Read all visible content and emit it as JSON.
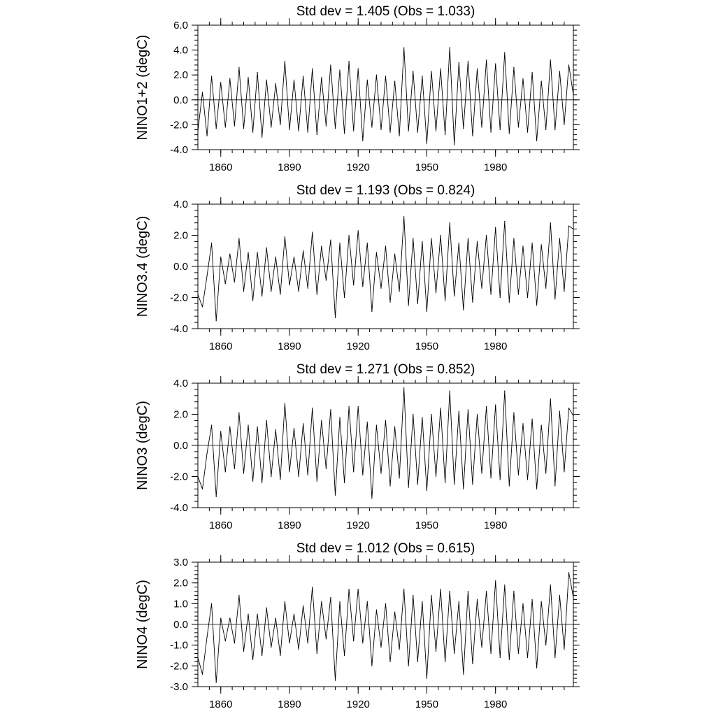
{
  "chart_data": [
    {
      "type": "line",
      "title": "Std dev = 1.405 (Obs = 1.033)",
      "xlabel": "",
      "ylabel": "NINO1+2 (degC)",
      "xlim": [
        1850,
        2014
      ],
      "ylim": [
        -4.0,
        6.0
      ],
      "yticks": [
        -4.0,
        -2.0,
        0.0,
        2.0,
        4.0,
        6.0
      ],
      "ytick_labels": [
        "-4.0",
        "-2.0",
        "0.0",
        "2.0",
        "4.0",
        "6.0"
      ],
      "xticks": [
        1860,
        1890,
        1920,
        1950,
        1980
      ],
      "xtick_labels": [
        "1860",
        "1890",
        "1920",
        "1950",
        "1980"
      ],
      "zero_line": true,
      "series": [
        {
          "name": "NINO1+2",
          "x": [
            1850,
            1852,
            1854,
            1856,
            1858,
            1860,
            1862,
            1864,
            1866,
            1868,
            1870,
            1872,
            1874,
            1876,
            1878,
            1880,
            1882,
            1884,
            1886,
            1888,
            1890,
            1892,
            1894,
            1896,
            1898,
            1900,
            1902,
            1904,
            1906,
            1908,
            1910,
            1912,
            1914,
            1916,
            1918,
            1920,
            1922,
            1924,
            1926,
            1928,
            1930,
            1932,
            1934,
            1936,
            1938,
            1940,
            1942,
            1944,
            1946,
            1948,
            1950,
            1952,
            1954,
            1956,
            1958,
            1960,
            1962,
            1964,
            1966,
            1968,
            1970,
            1972,
            1974,
            1976,
            1978,
            1980,
            1982,
            1984,
            1986,
            1988,
            1990,
            1992,
            1994,
            1996,
            1998,
            2000,
            2002,
            2004,
            2006,
            2008,
            2010,
            2012,
            2014
          ],
          "values": [
            -2.5,
            0.6,
            -2.9,
            1.9,
            -2.3,
            1.4,
            -2.2,
            1.7,
            -2.1,
            2.6,
            -2.3,
            1.8,
            -2.6,
            2.2,
            -3.0,
            1.6,
            -2.2,
            1.3,
            -2.0,
            3.1,
            -2.4,
            1.6,
            -2.5,
            1.9,
            -2.6,
            2.5,
            -2.8,
            1.8,
            -2.1,
            2.8,
            -2.3,
            2.4,
            -2.7,
            3.1,
            -2.5,
            2.5,
            -3.3,
            1.6,
            -2.2,
            2.0,
            -2.4,
            1.9,
            -2.6,
            1.5,
            -2.9,
            4.2,
            -2.5,
            2.3,
            -2.6,
            1.9,
            -3.5,
            2.3,
            -2.5,
            2.5,
            -2.8,
            4.2,
            -3.6,
            3.0,
            -2.3,
            3.1,
            -2.9,
            2.5,
            -2.2,
            3.2,
            -2.6,
            2.9,
            -2.4,
            3.8,
            -2.7,
            2.6,
            -2.2,
            1.7,
            -2.6,
            2.2,
            -3.3,
            1.5,
            -2.4,
            3.2,
            -2.4,
            2.3,
            -2.0,
            2.8,
            0.4
          ]
        }
      ]
    },
    {
      "type": "line",
      "title": "Std dev = 1.193 (Obs = 0.824)",
      "xlabel": "",
      "ylabel": "NINO3.4 (degC)",
      "xlim": [
        1850,
        2014
      ],
      "ylim": [
        -4.0,
        4.0
      ],
      "yticks": [
        -4.0,
        -2.0,
        0.0,
        2.0,
        4.0
      ],
      "ytick_labels": [
        "-4.0",
        "-2.0",
        "0.0",
        "2.0",
        "4.0"
      ],
      "xticks": [
        1860,
        1890,
        1920,
        1950,
        1980
      ],
      "xtick_labels": [
        "1860",
        "1890",
        "1920",
        "1950",
        "1980"
      ],
      "zero_line": true,
      "series": [
        {
          "name": "NINO3.4",
          "x": [
            1850,
            1852,
            1854,
            1856,
            1858,
            1860,
            1862,
            1864,
            1866,
            1868,
            1870,
            1872,
            1874,
            1876,
            1878,
            1880,
            1882,
            1884,
            1886,
            1888,
            1890,
            1892,
            1894,
            1896,
            1898,
            1900,
            1902,
            1904,
            1906,
            1908,
            1910,
            1912,
            1914,
            1916,
            1918,
            1920,
            1922,
            1924,
            1926,
            1928,
            1930,
            1932,
            1934,
            1936,
            1938,
            1940,
            1942,
            1944,
            1946,
            1948,
            1950,
            1952,
            1954,
            1956,
            1958,
            1960,
            1962,
            1964,
            1966,
            1968,
            1970,
            1972,
            1974,
            1976,
            1978,
            1980,
            1982,
            1984,
            1986,
            1988,
            1990,
            1992,
            1994,
            1996,
            1998,
            2000,
            2002,
            2004,
            2006,
            2008,
            2010,
            2012,
            2014
          ],
          "values": [
            -1.8,
            -2.6,
            -0.6,
            1.5,
            -3.5,
            0.6,
            -1.1,
            0.8,
            -1.0,
            1.8,
            -1.6,
            0.9,
            -2.2,
            0.9,
            -1.9,
            1.2,
            -1.6,
            0.6,
            -1.8,
            1.9,
            -1.2,
            0.6,
            -1.6,
            1.0,
            -1.4,
            2.2,
            -1.8,
            1.3,
            -0.9,
            1.7,
            -3.3,
            1.5,
            -2.0,
            2.0,
            -1.2,
            2.3,
            -1.3,
            1.5,
            -2.9,
            0.9,
            -1.4,
            1.3,
            -2.3,
            0.8,
            -1.6,
            3.2,
            -2.5,
            1.8,
            -2.4,
            1.6,
            -2.9,
            1.8,
            -1.7,
            2.0,
            -2.2,
            2.8,
            -1.9,
            1.5,
            -2.8,
            1.8,
            -2.3,
            1.6,
            -1.4,
            2.0,
            -1.8,
            2.5,
            -2.0,
            2.9,
            -2.3,
            1.8,
            -1.8,
            1.3,
            -2.0,
            1.5,
            -2.5,
            1.4,
            -1.4,
            2.8,
            -2.1,
            1.8,
            -1.6,
            2.6,
            2.4
          ]
        }
      ]
    },
    {
      "type": "line",
      "title": "Std dev = 1.271 (Obs = 0.852)",
      "xlabel": "",
      "ylabel": "NINO3 (degC)",
      "xlim": [
        1850,
        2014
      ],
      "ylim": [
        -4.0,
        4.0
      ],
      "yticks": [
        -4.0,
        -2.0,
        0.0,
        2.0,
        4.0
      ],
      "ytick_labels": [
        "-4.0",
        "-2.0",
        "0.0",
        "2.0",
        "4.0"
      ],
      "xticks": [
        1860,
        1890,
        1920,
        1950,
        1980
      ],
      "xtick_labels": [
        "1860",
        "1890",
        "1920",
        "1950",
        "1980"
      ],
      "zero_line": true,
      "series": [
        {
          "name": "NINO3",
          "x": [
            1850,
            1852,
            1854,
            1856,
            1858,
            1860,
            1862,
            1864,
            1866,
            1868,
            1870,
            1872,
            1874,
            1876,
            1878,
            1880,
            1882,
            1884,
            1886,
            1888,
            1890,
            1892,
            1894,
            1896,
            1898,
            1900,
            1902,
            1904,
            1906,
            1908,
            1910,
            1912,
            1914,
            1916,
            1918,
            1920,
            1922,
            1924,
            1926,
            1928,
            1930,
            1932,
            1934,
            1936,
            1938,
            1940,
            1942,
            1944,
            1946,
            1948,
            1950,
            1952,
            1954,
            1956,
            1958,
            1960,
            1962,
            1964,
            1966,
            1968,
            1970,
            1972,
            1974,
            1976,
            1978,
            1980,
            1982,
            1984,
            1986,
            1988,
            1990,
            1992,
            1994,
            1996,
            1998,
            2000,
            2002,
            2004,
            2006,
            2008,
            2010,
            2012,
            2014
          ],
          "values": [
            -2.0,
            -2.8,
            -0.5,
            1.3,
            -3.3,
            0.9,
            -1.7,
            1.2,
            -1.5,
            2.1,
            -1.8,
            1.3,
            -2.3,
            1.2,
            -2.4,
            1.6,
            -2.0,
            1.0,
            -2.2,
            2.7,
            -1.7,
            1.1,
            -2.0,
            1.4,
            -1.9,
            2.4,
            -2.3,
            1.6,
            -1.5,
            2.3,
            -3.2,
            1.8,
            -2.4,
            2.5,
            -1.7,
            2.5,
            -1.9,
            1.5,
            -3.4,
            1.3,
            -1.8,
            1.6,
            -2.6,
            1.2,
            -2.1,
            3.7,
            -2.7,
            2.0,
            -2.5,
            1.8,
            -2.9,
            2.0,
            -2.0,
            2.4,
            -2.4,
            3.5,
            -2.5,
            2.2,
            -2.8,
            2.3,
            -2.5,
            2.0,
            -1.8,
            2.5,
            -2.1,
            2.6,
            -2.2,
            3.5,
            -2.6,
            2.1,
            -1.9,
            1.4,
            -2.2,
            1.7,
            -2.8,
            1.3,
            -1.8,
            3.0,
            -2.6,
            2.2,
            -1.7,
            2.4,
            1.9
          ]
        }
      ]
    },
    {
      "type": "line",
      "title": "Std dev = 1.012 (Obs = 0.615)",
      "xlabel": "",
      "ylabel": "NINO4 (degC)",
      "xlim": [
        1850,
        2014
      ],
      "ylim": [
        -3.0,
        3.0
      ],
      "yticks": [
        -3.0,
        -2.0,
        -1.0,
        0.0,
        1.0,
        2.0,
        3.0
      ],
      "ytick_labels": [
        "-3.0",
        "-2.0",
        "-1.0",
        "0.0",
        "1.0",
        "2.0",
        "3.0"
      ],
      "xticks": [
        1860,
        1890,
        1920,
        1950,
        1980
      ],
      "xtick_labels": [
        "1860",
        "1890",
        "1920",
        "1950",
        "1980"
      ],
      "zero_line": true,
      "series": [
        {
          "name": "NINO4",
          "x": [
            1850,
            1852,
            1854,
            1856,
            1858,
            1860,
            1862,
            1864,
            1866,
            1868,
            1870,
            1872,
            1874,
            1876,
            1878,
            1880,
            1882,
            1884,
            1886,
            1888,
            1890,
            1892,
            1894,
            1896,
            1898,
            1900,
            1902,
            1904,
            1906,
            1908,
            1910,
            1912,
            1914,
            1916,
            1918,
            1920,
            1922,
            1924,
            1926,
            1928,
            1930,
            1932,
            1934,
            1936,
            1938,
            1940,
            1942,
            1944,
            1946,
            1948,
            1950,
            1952,
            1954,
            1956,
            1958,
            1960,
            1962,
            1964,
            1966,
            1968,
            1970,
            1972,
            1974,
            1976,
            1978,
            1980,
            1982,
            1984,
            1986,
            1988,
            1990,
            1992,
            1994,
            1996,
            1998,
            2000,
            2002,
            2004,
            2006,
            2008,
            2010,
            2012,
            2014
          ],
          "values": [
            -1.6,
            -2.4,
            -0.6,
            1.0,
            -2.8,
            0.3,
            -0.8,
            0.3,
            -0.9,
            1.4,
            -1.3,
            0.5,
            -1.7,
            0.5,
            -1.5,
            0.8,
            -1.1,
            0.3,
            -1.5,
            1.1,
            -0.9,
            0.5,
            -1.2,
            0.9,
            -0.9,
            1.8,
            -1.4,
            1.1,
            -0.7,
            1.3,
            -2.7,
            1.1,
            -1.5,
            1.7,
            -0.8,
            1.7,
            -0.9,
            1.1,
            -2.0,
            0.7,
            -1.1,
            1.0,
            -1.8,
            0.6,
            -1.2,
            1.7,
            -2.0,
            1.4,
            -1.8,
            1.1,
            -2.6,
            1.4,
            -1.3,
            1.7,
            -1.8,
            1.6,
            -1.4,
            1.1,
            -2.4,
            1.6,
            -1.9,
            1.2,
            -1.1,
            1.6,
            -1.4,
            2.1,
            -1.6,
            1.9,
            -1.7,
            1.6,
            -1.4,
            1.0,
            -1.6,
            1.2,
            -2.1,
            1.1,
            -1.0,
            1.9,
            -1.6,
            1.4,
            -1.2,
            2.5,
            1.3
          ]
        }
      ]
    }
  ]
}
